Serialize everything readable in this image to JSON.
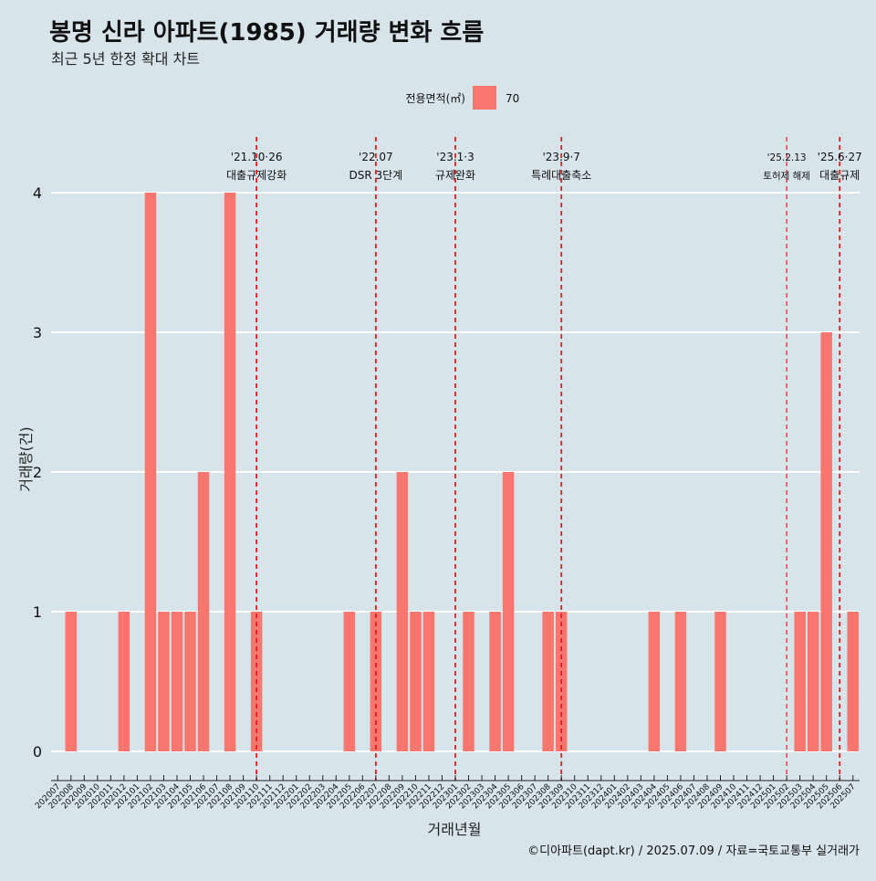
{
  "chart_data": {
    "type": "bar",
    "title": "봉명 신라 아파트(1985) 거래량 변화 흐름",
    "subtitle": "최근 5년 한정 확대 차트",
    "xlabel": "거래년월",
    "ylabel": "거래량(건)",
    "ylim": [
      0,
      4
    ],
    "yticks": [
      0,
      1,
      2,
      3,
      4
    ],
    "grid": "horizontal",
    "legend": {
      "title": "전용면적(㎡)",
      "placement": "top-center",
      "entries": [
        "70"
      ]
    },
    "categories": [
      "202007",
      "202008",
      "202009",
      "202010",
      "202011",
      "202012",
      "202101",
      "202102",
      "202103",
      "202104",
      "202105",
      "202106",
      "202107",
      "202108",
      "202109",
      "202110",
      "202111",
      "202112",
      "202201",
      "202202",
      "202203",
      "202204",
      "202205",
      "202206",
      "202207",
      "202208",
      "202209",
      "202210",
      "202211",
      "202212",
      "202301",
      "202302",
      "202303",
      "202304",
      "202305",
      "202306",
      "202307",
      "202308",
      "202309",
      "202310",
      "202311",
      "202312",
      "202401",
      "202402",
      "202403",
      "202404",
      "202405",
      "202406",
      "202407",
      "202408",
      "202409",
      "202410",
      "202411",
      "202412",
      "202501",
      "202502",
      "202503",
      "202504",
      "202505",
      "202506",
      "202507"
    ],
    "series": [
      {
        "name": "70",
        "color": "#f8766d",
        "values": [
          0,
          1,
          0,
          0,
          0,
          1,
          0,
          4,
          1,
          1,
          1,
          2,
          0,
          4,
          0,
          1,
          0,
          0,
          0,
          0,
          0,
          0,
          1,
          0,
          1,
          0,
          2,
          1,
          1,
          0,
          0,
          1,
          0,
          1,
          2,
          0,
          0,
          1,
          1,
          0,
          0,
          0,
          0,
          0,
          0,
          1,
          0,
          1,
          0,
          0,
          1,
          0,
          0,
          0,
          0,
          0,
          1,
          1,
          3,
          0,
          1
        ]
      }
    ],
    "annotations": [
      {
        "category": "202110",
        "date": "'21.10·26",
        "label": "대출규제강화"
      },
      {
        "category": "202207",
        "date": "'22.07",
        "label": "DSR 3단계"
      },
      {
        "category": "202301",
        "date": "'23.1·3",
        "label": "규제완화"
      },
      {
        "category": "202309",
        "date": "'23.9·7",
        "label": "특례대출축소"
      },
      {
        "category": "202502",
        "date": "'25.2.13",
        "label": "토허제 해제",
        "small": true
      },
      {
        "category": "202506",
        "date": "'25.6·27",
        "label": "대출규제"
      }
    ],
    "annotation_color": "#e41a1c"
  },
  "caption": "©디아파트(dapt.kr) / 2025.07.09 / 자료=국토교통부 실거래가"
}
